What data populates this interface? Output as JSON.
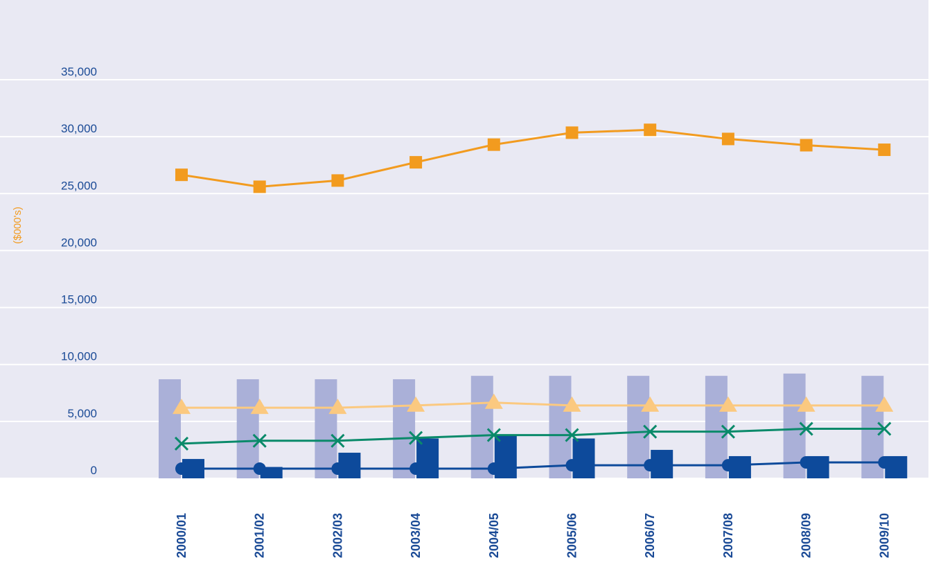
{
  "chart_data": {
    "type": "combo",
    "y_label": "($000's)",
    "categories": [
      "2000/01",
      "2001/02",
      "2002/03",
      "2003/04",
      "2004/05",
      "2005/06",
      "2006/07",
      "2007/08",
      "2008/09",
      "2009/10"
    ],
    "ylim": [
      0,
      42000
    ],
    "yticks": [
      0,
      {
        "value": 5000,
        "label": "5,000"
      },
      {
        "value": 10000,
        "label": "10,000"
      },
      {
        "value": 15000,
        "label": "15,000"
      },
      {
        "value": 20000,
        "label": "20,000"
      },
      {
        "value": 25000,
        "label": "25,000"
      },
      {
        "value": 30000,
        "label": "30,000"
      },
      {
        "value": 35000,
        "label": "35,000"
      }
    ],
    "grid": true,
    "series": [
      {
        "kind": "bar",
        "offset": "left",
        "color": "#aab0d8",
        "values": [
          8700,
          8700,
          8700,
          8700,
          9000,
          9000,
          9000,
          9000,
          9200,
          9000
        ]
      },
      {
        "kind": "line",
        "marker": "circle",
        "color": "#0d4a9b",
        "values": [
          850,
          850,
          850,
          850,
          850,
          1150,
          1150,
          1150,
          1400,
          1400
        ]
      },
      {
        "kind": "bar",
        "offset": "right",
        "color": "#0d4a9b",
        "values": [
          1700,
          1000,
          2250,
          3500,
          3800,
          3500,
          2500,
          1950,
          1950,
          1950
        ]
      },
      {
        "kind": "line",
        "marker": "cross",
        "color": "#0a8a6a",
        "values": [
          3050,
          3300,
          3300,
          3550,
          3800,
          3800,
          4100,
          4100,
          4350,
          4350
        ]
      },
      {
        "kind": "line",
        "marker": "triangle",
        "color": "#fbc980",
        "values": [
          6200,
          6200,
          6200,
          6400,
          6650,
          6400,
          6400,
          6400,
          6400,
          6400
        ]
      },
      {
        "kind": "line",
        "marker": "square",
        "color": "#f29b1f",
        "values": [
          26650,
          25600,
          26150,
          27750,
          29300,
          30350,
          30600,
          29800,
          29250,
          28850
        ]
      }
    ]
  }
}
